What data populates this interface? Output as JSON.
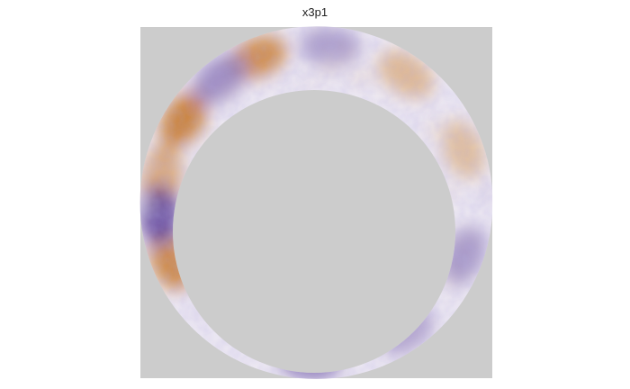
{
  "chart_data": {
    "type": "heatmap",
    "title": "x3p1",
    "xlabel": "",
    "ylabel": "",
    "grid": false,
    "legend": "none",
    "colors": {
      "background": "#ffffff",
      "panel_fill": "#cccccc",
      "low": "#4b2a8e",
      "mid": "#f7f7f7",
      "high": "#c46a0b"
    },
    "regions": [
      {
        "label": "orange-patch-top",
        "angle_deg": 112,
        "value": 0.85
      },
      {
        "label": "orange-patch-upper-left",
        "angle_deg": 148,
        "value": 0.95
      },
      {
        "label": "orange-patch-left",
        "angle_deg": 170,
        "value": 0.7
      },
      {
        "label": "orange-patch-lower-left",
        "angle_deg": 202,
        "value": 0.9
      },
      {
        "label": "orange-band-right",
        "angle_deg": 20,
        "value": 0.45
      },
      {
        "label": "orange-band-upper-right",
        "angle_deg": 55,
        "value": 0.5
      },
      {
        "label": "purple-patch-left",
        "angle_deg": 185,
        "value": -0.95
      },
      {
        "label": "purple-patch-upper-left",
        "angle_deg": 128,
        "value": -0.6
      },
      {
        "label": "purple-patch-bottom",
        "angle_deg": 268,
        "value": -0.75
      },
      {
        "label": "purple-patch-top",
        "angle_deg": 85,
        "value": -0.5
      },
      {
        "label": "purple-patch-right",
        "angle_deg": 340,
        "value": -0.55
      },
      {
        "label": "purple-patch-lower-right",
        "angle_deg": 305,
        "value": -0.45
      }
    ]
  }
}
